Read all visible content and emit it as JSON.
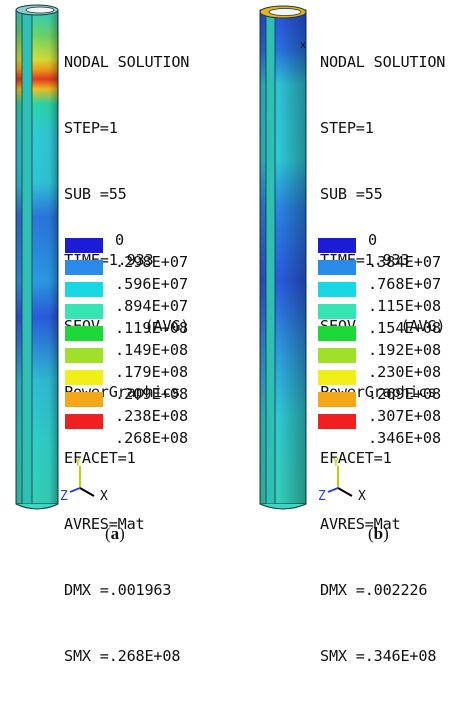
{
  "panels": [
    {
      "id": "a",
      "caption_open": "(",
      "caption_letter": "a",
      "caption_close": ")",
      "info": [
        "NODAL SOLUTION",
        "STEP=1",
        "SUB =55",
        "TIME=1.933",
        "SEQV     (AVG)",
        "PowerGraphics",
        "EFACET=1",
        "AVRES=Mat",
        "DMX =.001963",
        "SMX =.268E+08"
      ],
      "legend": [
        {
          "label": "0",
          "color": "#1c1cd6"
        },
        {
          "label": ".298E+07",
          "color": "#2a8be8"
        },
        {
          "label": ".596E+07",
          "color": "#18d8e6"
        },
        {
          "label": ".894E+07",
          "color": "#36e4b4"
        },
        {
          "label": ".119E+08",
          "color": "#1ed838"
        },
        {
          "label": ".149E+08",
          "color": "#a0e02a"
        },
        {
          "label": ".179E+08",
          "color": "#f2ee18"
        },
        {
          "label": ".209E+08",
          "color": "#f5a71a"
        },
        {
          "label": ".238E+08",
          "color": "#ee2020"
        },
        {
          "label": ".268E+08",
          "color": ""
        }
      ],
      "axes": {
        "y": "Y",
        "z": "Z",
        "x": "X"
      }
    },
    {
      "id": "b",
      "caption_open": "(",
      "caption_letter": "b",
      "caption_close": ")",
      "info": [
        "NODAL SOLUTION",
        "STEP=1",
        "SUB =55",
        "TIME=1.933",
        "SEQV     (AVG)",
        "PowerGraphics",
        "EFACET=1",
        "AVRES=Mat",
        "DMX =.002226",
        "SMX =.346E+08"
      ],
      "legend": [
        {
          "label": "0",
          "color": "#1c1cd6"
        },
        {
          "label": ".384E+07",
          "color": "#2a8be8"
        },
        {
          "label": ".768E+07",
          "color": "#18d8e6"
        },
        {
          "label": ".115E+08",
          "color": "#36e4b4"
        },
        {
          "label": ".154E+08",
          "color": "#1ed838"
        },
        {
          "label": ".192E+08",
          "color": "#a0e02a"
        },
        {
          "label": ".230E+08",
          "color": "#f2ee18"
        },
        {
          "label": ".269E+08",
          "color": "#f5a71a"
        },
        {
          "label": ".307E+08",
          "color": "#ee2020"
        },
        {
          "label": ".346E+08",
          "color": ""
        }
      ],
      "axes": {
        "y": "Y",
        "z": "Z",
        "x": "X"
      },
      "marker": "x"
    }
  ]
}
